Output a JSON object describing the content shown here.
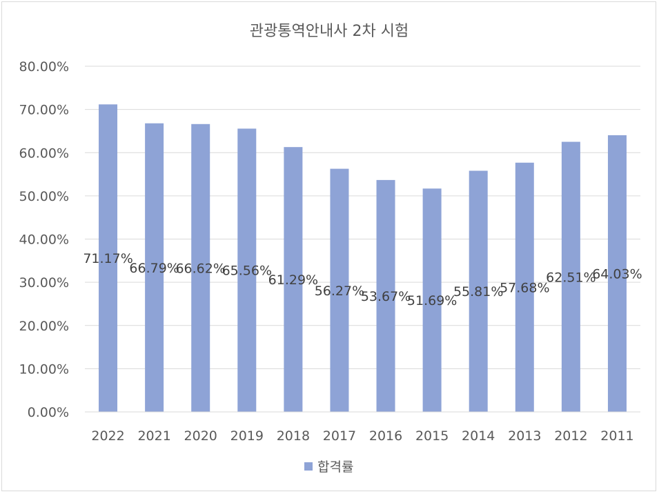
{
  "chart_data": {
    "type": "bar",
    "title": "관광통역안내사 2차 시험",
    "xlabel": "",
    "ylabel": "",
    "categories": [
      "2022",
      "2021",
      "2020",
      "2019",
      "2018",
      "2017",
      "2016",
      "2015",
      "2014",
      "2013",
      "2012",
      "2011"
    ],
    "series": [
      {
        "name": "합격률",
        "values": [
          71.17,
          66.79,
          66.62,
          65.56,
          61.29,
          56.27,
          53.67,
          51.69,
          55.81,
          57.68,
          62.51,
          64.03
        ],
        "labels": [
          "71.17%",
          "66.79%",
          "66.62%",
          "65.56%",
          "61.29%",
          "56.27%",
          "53.67%",
          "51.69%",
          "55.81%",
          "57.68%",
          "62.51%",
          "64.03%"
        ]
      }
    ],
    "ylim": [
      0,
      80
    ],
    "yticks": [
      "0.00%",
      "10.00%",
      "20.00%",
      "30.00%",
      "40.00%",
      "50.00%",
      "60.00%",
      "70.00%",
      "80.00%"
    ],
    "grid": true,
    "legend_position": "bottom",
    "colors": {
      "bar": "#8ea3d6",
      "grid": "#d9d9d9",
      "text": "#595959"
    }
  }
}
